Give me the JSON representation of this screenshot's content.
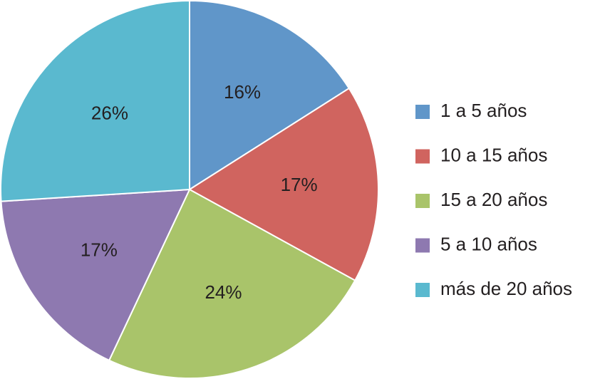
{
  "chart_data": {
    "type": "pie",
    "categories": [
      "1 a 5 años",
      "10 a 15 años",
      "15 a 20 años",
      "5 a 10 años",
      "más de 20 años"
    ],
    "values": [
      16,
      17,
      24,
      17,
      26
    ],
    "value_labels": [
      "16%",
      "17%",
      "24%",
      "17%",
      "26%"
    ],
    "colors": [
      "#6096c9",
      "#d0645f",
      "#a9c46a",
      "#8e79b0",
      "#5ab9cf"
    ],
    "legend": "right"
  }
}
